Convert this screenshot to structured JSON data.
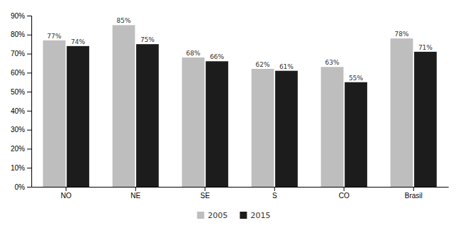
{
  "chart_data": {
    "type": "bar",
    "categories": [
      "NO",
      "NE",
      "SE",
      "S",
      "CO",
      "Brasil"
    ],
    "series": [
      {
        "name": "2005",
        "color": "#bebebe",
        "values": [
          0.77,
          0.85,
          0.68,
          0.62,
          0.63,
          0.78
        ],
        "value_labels": [
          "77%",
          "85%",
          "68%",
          "62%",
          "63%",
          "78%"
        ]
      },
      {
        "name": "2015",
        "color": "#1c1c1c",
        "values": [
          0.74,
          0.75,
          0.66,
          0.61,
          0.55,
          0.71
        ],
        "value_labels": [
          "74%",
          "75%",
          "66%",
          "61%",
          "55%",
          "71%"
        ]
      }
    ],
    "ylim": [
      0,
      0.9
    ],
    "yticks": [
      {
        "value": 0,
        "label": "0%"
      },
      {
        "value": 0.1,
        "label": "10%"
      },
      {
        "value": 0.2,
        "label": "20%"
      },
      {
        "value": 0.3,
        "label": "30%"
      },
      {
        "value": 0.4,
        "label": "40%"
      },
      {
        "value": 0.5,
        "label": "50%"
      },
      {
        "value": 0.6,
        "label": "60%"
      },
      {
        "value": 0.7,
        "label": "70%"
      },
      {
        "value": 0.8,
        "label": "80%"
      },
      {
        "value": 0.9,
        "label": "90%"
      }
    ],
    "grid": false,
    "legend": "bottom",
    "data_labels": true
  }
}
